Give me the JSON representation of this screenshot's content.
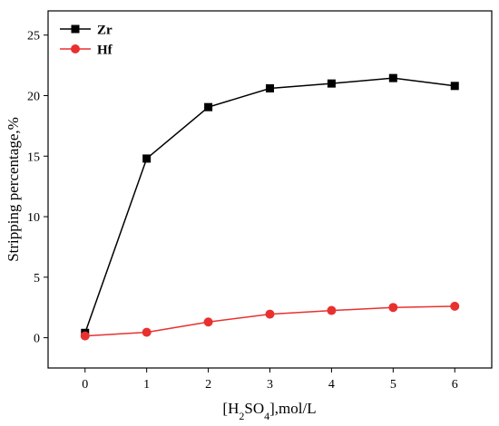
{
  "chart_data": {
    "type": "line",
    "x": [
      0,
      1,
      2,
      3,
      4,
      5,
      6
    ],
    "series": [
      {
        "name": "Zr",
        "values": [
          0.4,
          14.8,
          19.05,
          20.6,
          21.0,
          21.45,
          20.8
        ],
        "color": "#000000",
        "marker": "square"
      },
      {
        "name": "Hf",
        "values": [
          0.15,
          0.45,
          1.3,
          1.95,
          2.25,
          2.5,
          2.6
        ],
        "color": "#e8312f",
        "marker": "circle"
      }
    ],
    "xlabel_parts": {
      "prefix": "[H",
      "sub1": "2",
      "mid": "SO",
      "sub2": "4",
      "suffix": "],mol/L"
    },
    "ylabel": "Stripping percentage,%",
    "xlim": [
      -0.6,
      6.6
    ],
    "ylim": [
      -2.5,
      27
    ],
    "xticks": [
      0,
      1,
      2,
      3,
      4,
      5,
      6
    ],
    "yticks": [
      0,
      5,
      10,
      15,
      20,
      25
    ],
    "grid": false,
    "legend_position": "top-left"
  }
}
